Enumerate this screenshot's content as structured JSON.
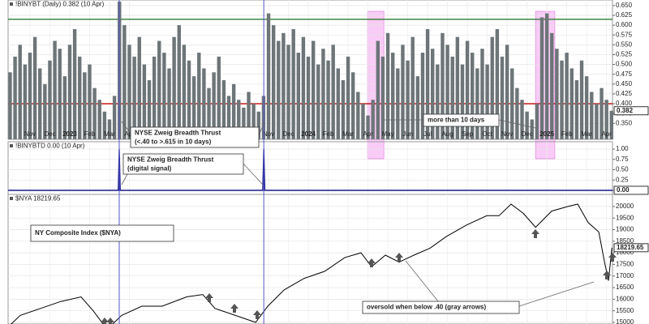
{
  "chart_data": [
    {
      "type": "bar",
      "title": "!BINYBT (Daily) 0.382 (10 Apr)",
      "x": [
        -1,
        -0.75,
        -0.5,
        -0.25,
        0,
        0.25,
        0.5,
        0.75,
        1,
        1.25,
        1.5,
        1.75,
        2,
        2.25,
        2.5,
        2.75,
        3,
        3.25,
        3.5,
        3.75,
        4,
        4.25,
        4.5,
        4.75,
        5,
        5.25,
        5.5,
        5.75,
        6,
        6.25,
        6.5,
        6.75,
        7,
        7.25,
        7.5,
        7.75,
        8,
        8.25,
        8.5,
        8.75,
        9,
        9.25,
        9.5,
        9.75,
        10,
        10.25,
        10.5,
        10.75,
        11,
        11.25,
        11.5,
        11.75,
        12,
        12.25,
        12.5,
        12.75,
        13,
        13.25,
        13.5,
        13.75,
        14,
        14.25,
        14.5,
        14.75,
        15,
        15.25,
        15.5,
        15.75,
        16,
        16.25,
        16.5,
        16.75,
        17,
        17.25,
        17.5,
        17.75,
        18,
        18.25,
        18.5,
        18.75,
        19,
        19.25,
        19.5,
        19.75,
        20,
        20.25,
        20.5,
        20.75,
        21,
        21.25,
        21.5,
        21.75,
        22,
        22.25,
        22.5,
        22.75,
        23,
        23.25,
        23.5,
        23.75,
        24,
        24.25,
        24.5,
        24.75,
        25,
        25.25,
        25.5,
        25.75,
        26,
        26.25,
        26.5,
        26.75,
        27,
        27.25,
        27.5,
        27.75,
        28,
        28.25,
        28.5,
        28.75,
        29,
        29.25
      ],
      "values": [
        0.48,
        0.52,
        0.55,
        0.5,
        0.53,
        0.57,
        0.49,
        0.45,
        0.51,
        0.56,
        0.54,
        0.47,
        0.55,
        0.59,
        0.52,
        0.48,
        0.5,
        0.44,
        0.41,
        0.38,
        0.36,
        0.42,
        0.66,
        0.6,
        0.55,
        0.52,
        0.57,
        0.5,
        0.46,
        0.52,
        0.56,
        0.53,
        0.49,
        0.57,
        0.6,
        0.55,
        0.51,
        0.47,
        0.53,
        0.49,
        0.44,
        0.48,
        0.52,
        0.46,
        0.42,
        0.45,
        0.41,
        0.39,
        0.43,
        0.4,
        0.38,
        0.42,
        0.63,
        0.6,
        0.56,
        0.58,
        0.55,
        0.59,
        0.53,
        0.57,
        0.52,
        0.56,
        0.5,
        0.54,
        0.51,
        0.55,
        0.49,
        0.46,
        0.52,
        0.48,
        0.43,
        0.4,
        0.37,
        0.41,
        0.56,
        0.52,
        0.58,
        0.53,
        0.49,
        0.55,
        0.51,
        0.57,
        0.47,
        0.53,
        0.59,
        0.54,
        0.5,
        0.58,
        0.55,
        0.52,
        0.57,
        0.5,
        0.56,
        0.53,
        0.49,
        0.54,
        0.5,
        0.57,
        0.59,
        0.52,
        0.55,
        0.49,
        0.44,
        0.41,
        0.38,
        0.36,
        0.4,
        0.62,
        0.63,
        0.58,
        0.54,
        0.51,
        0.53,
        0.49,
        0.46,
        0.51,
        0.47,
        0.43,
        0.4,
        0.44,
        0.41,
        0.382
      ],
      "color": "#6d7578",
      "xlim": [
        -1.1,
        29.3
      ],
      "xticks": [
        {
          "value": 0,
          "label": "Nov"
        },
        {
          "value": 1,
          "label": "Dec"
        },
        {
          "value": 2,
          "label": "2023"
        },
        {
          "value": 3,
          "label": "Feb"
        },
        {
          "value": 4,
          "label": "Mar"
        },
        {
          "value": 5,
          "label": "Apr"
        },
        {
          "value": 12,
          "label": "Nov"
        },
        {
          "value": 13,
          "label": "Dec"
        },
        {
          "value": 14,
          "label": "2024"
        },
        {
          "value": 15,
          "label": "Feb"
        },
        {
          "value": 16,
          "label": "Mar"
        },
        {
          "value": 17,
          "label": "Apr"
        },
        {
          "value": 18,
          "label": "May"
        },
        {
          "value": 19,
          "label": "Jun"
        },
        {
          "value": 20,
          "label": "Jul"
        },
        {
          "value": 21,
          "label": "Aug"
        },
        {
          "value": 22,
          "label": "Sep"
        },
        {
          "value": 23,
          "label": "Oct"
        },
        {
          "value": 24,
          "label": "Nov"
        },
        {
          "value": 25,
          "label": "Dec"
        },
        {
          "value": 26,
          "label": "2025"
        },
        {
          "value": 27,
          "label": "Feb"
        },
        {
          "value": 28,
          "label": "Mar"
        },
        {
          "value": 29,
          "label": "Apr"
        }
      ],
      "ylim": [
        0.33,
        0.66
      ],
      "yticks": [
        {
          "value": 0.35,
          "label": "0.350"
        },
        {
          "value": 0.375,
          "label": "0.375"
        },
        {
          "value": 0.4,
          "label": "0.400"
        },
        {
          "value": 0.425,
          "label": "0.425"
        },
        {
          "value": 0.45,
          "label": "0.450"
        },
        {
          "value": 0.475,
          "label": "0.475"
        },
        {
          "value": 0.5,
          "label": "0.500"
        },
        {
          "value": 0.525,
          "label": "0.525"
        },
        {
          "value": 0.55,
          "label": "0.550"
        },
        {
          "value": 0.575,
          "label": "0.575"
        },
        {
          "value": 0.6,
          "label": "0.600"
        },
        {
          "value": 0.625,
          "label": "0.625"
        },
        {
          "value": 0.65,
          "label": "0.650"
        }
      ],
      "reference_lines": [
        {
          "value": 0.615,
          "color": "#2e7d32"
        },
        {
          "value": 0.4,
          "color": "#c00000"
        }
      ],
      "highlights": [
        {
          "x": [
            16.98,
            17.8
          ],
          "color": "#f3a2ee"
        },
        {
          "x": [
            25.43,
            26.4
          ],
          "color": "#f3a2ee"
        }
      ],
      "annotations": [
        {
          "text": [
            "NYSE Zweig Breadth Thrust",
            "(<.40 to >.615 in 10 days)"
          ]
        },
        {
          "text": [
            "more than 10 days"
          ]
        }
      ],
      "grid": true
    },
    {
      "type": "line",
      "title": "!BINYBTD 0.00 (10 Apr)",
      "x": [
        -1.1,
        4.44,
        4.49,
        4.54,
        11.71,
        11.76,
        11.81,
        29.3
      ],
      "values": [
        0,
        0,
        1,
        0,
        0,
        1,
        0,
        0
      ],
      "last_label": "0.00",
      "color": "#1a1a8c",
      "xlim": [
        -1.1,
        29.3
      ],
      "ylim": [
        -0.05,
        1.1
      ],
      "yticks": [
        {
          "value": 0,
          "label": "0.00"
        },
        {
          "value": 0.25,
          "label": "0.25"
        },
        {
          "value": 0.5,
          "label": "0.50"
        },
        {
          "value": 0.75,
          "label": "0.75"
        },
        {
          "value": 1,
          "label": "1.00"
        }
      ],
      "annotations": [
        {
          "text": [
            "NYSE Zweig Breadth Thrust",
            "(digital signal)"
          ]
        }
      ],
      "grid": true
    },
    {
      "type": "line",
      "title": "$NYA 18219.65",
      "x": [
        -1.1,
        -0.49,
        0.53,
        1.55,
        2.57,
        3.18,
        3.88,
        4.61,
        5.63,
        6.65,
        7.88,
        8.69,
        9.31,
        10.33,
        11.35,
        11.96,
        12.78,
        13.8,
        14.82,
        15.84,
        16.65,
        17.18,
        17.88,
        18.57,
        19.31,
        20.12,
        20.94,
        21.96,
        22.98,
        23.59,
        24.2,
        24.82,
        25.43,
        26.24,
        27.06,
        27.55,
        28.08,
        28.61,
        28.9,
        29.1,
        29.27
      ],
      "values": [
        14800,
        15300,
        15600,
        15900,
        16100,
        15500,
        14700,
        15300,
        15700,
        15700,
        16100,
        16200,
        15600,
        15300,
        15000,
        15700,
        16400,
        16900,
        17200,
        17800,
        18000,
        17400,
        17900,
        17600,
        17900,
        18200,
        18700,
        19200,
        19600,
        19600,
        20100,
        19700,
        19100,
        19800,
        20000,
        20100,
        19300,
        18900,
        17600,
        16800,
        18219.65
      ],
      "color": "#000000",
      "xlim": [
        -1.1,
        29.3
      ],
      "ylim": [
        14930,
        20450
      ],
      "yticks": [
        15000,
        15500,
        16000,
        16500,
        17000,
        17500,
        18000,
        18500,
        19000,
        19500,
        20000
      ],
      "annotations": [
        {
          "text": [
            "NY Composite Index ($NYA)"
          ]
        },
        {
          "text": [
            "oversold when below .40 (gray arrows)"
          ]
        }
      ],
      "grid": true
    }
  ]
}
